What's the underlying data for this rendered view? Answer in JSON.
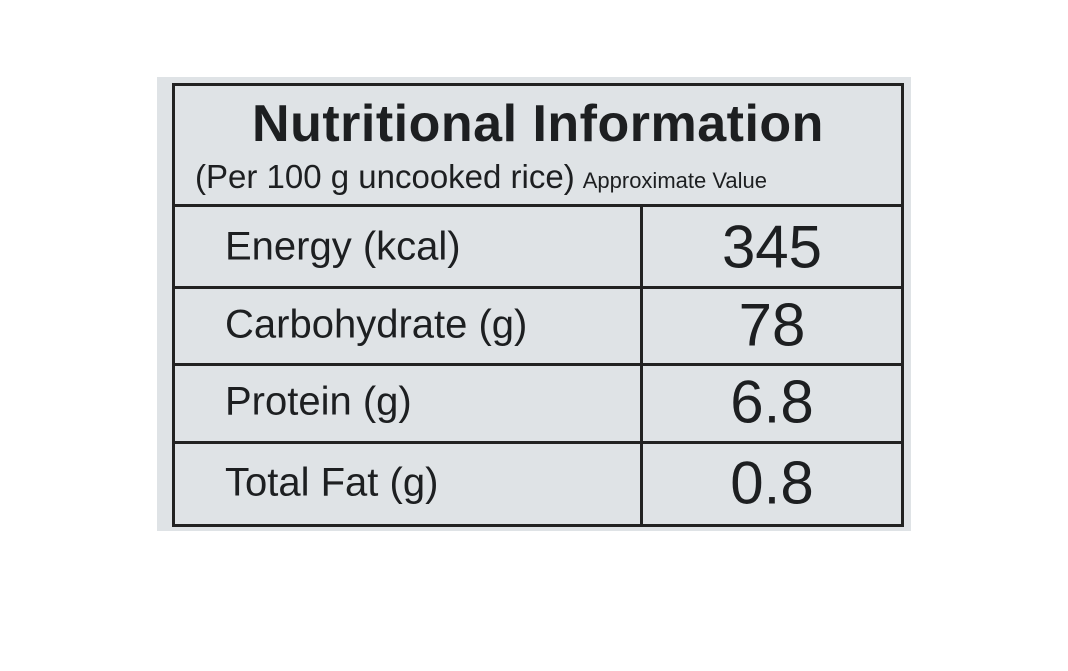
{
  "label": {
    "title": "Nutritional Information",
    "subtitle": "(Per 100 g uncooked rice)",
    "note": "Approximate Value",
    "rows": [
      [
        "Energy (kcal)",
        "345"
      ],
      [
        "Carbohydrate (g)",
        "78"
      ],
      [
        "Protein (g)",
        "6.8"
      ],
      [
        "Total Fat (g)",
        "0.8"
      ]
    ]
  }
}
